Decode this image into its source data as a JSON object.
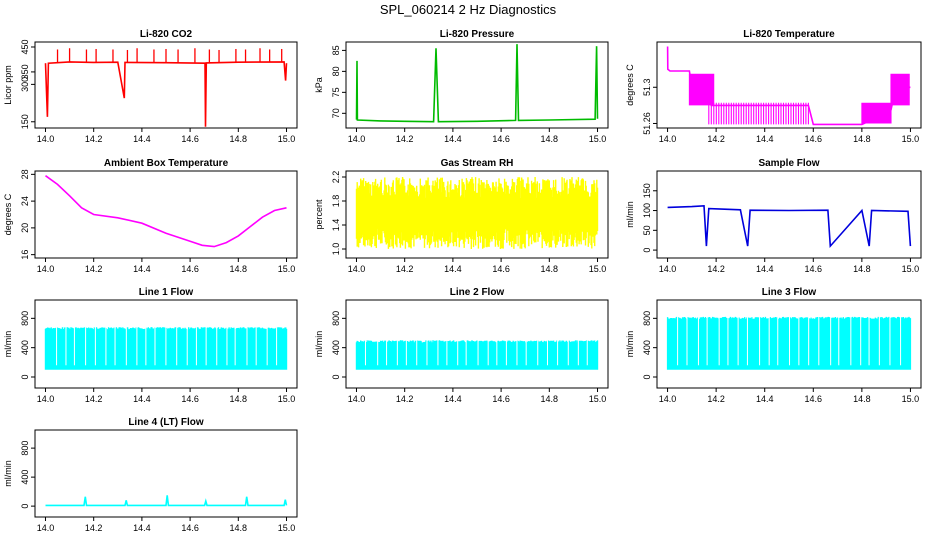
{
  "figure_title": "SPL_060214  2 Hz Diagnostics",
  "chart_data": [
    {
      "type": "line",
      "title": "Li-820 CO2",
      "ylabel": "Licor ppm",
      "color": "#ff0000",
      "xlim": [
        14.0,
        15.0
      ],
      "ylim": [
        125,
        470
      ],
      "yticks": [
        150,
        300,
        350,
        450
      ],
      "xticks": [
        "14.0",
        "14.2",
        "14.4",
        "14.6",
        "14.8",
        "15.0"
      ],
      "series": [
        {
          "x": [
            14.0,
            14.008,
            14.012,
            14.1,
            14.2,
            14.3,
            14.327,
            14.33,
            14.5,
            14.662,
            14.664,
            14.667,
            14.8,
            14.99,
            14.996,
            15.0
          ],
          "y": [
            385,
            170,
            385,
            390,
            388,
            389,
            245,
            388,
            387,
            385,
            130,
            386,
            389,
            390,
            315,
            385
          ]
        }
      ],
      "spikes": [
        {
          "x": [
            14.05,
            14.1,
            14.17,
            14.21,
            14.28,
            14.34,
            14.38,
            14.45,
            14.5,
            14.55,
            14.62,
            14.68,
            14.72,
            14.79,
            14.83,
            14.89,
            14.93,
            14.98
          ],
          "y": [
            440,
            445,
            440,
            442,
            440,
            438,
            445,
            440,
            442,
            440,
            445,
            440,
            438,
            442,
            440,
            445,
            440,
            442
          ]
        }
      ]
    },
    {
      "type": "line",
      "title": "Li-820 Pressure",
      "ylabel": "kPa",
      "color": "#00bb00",
      "xlim": [
        14.0,
        15.0
      ],
      "ylim": [
        66.5,
        87
      ],
      "yticks": [
        70,
        75,
        80,
        85
      ],
      "xticks": [
        "14.0",
        "14.2",
        "14.4",
        "14.6",
        "14.8",
        "15.0"
      ],
      "series": [
        {
          "x": [
            14.0,
            14.002,
            14.004,
            14.1,
            14.2,
            14.32,
            14.33,
            14.34,
            14.5,
            14.66,
            14.666,
            14.672,
            14.8,
            14.99,
            14.996,
            15.0
          ],
          "y": [
            68.5,
            82.5,
            68.4,
            68.2,
            68.1,
            68.0,
            85.5,
            68.0,
            68.1,
            68.3,
            86.5,
            68.3,
            68.4,
            68.6,
            86.0,
            68.7
          ]
        }
      ]
    },
    {
      "type": "line",
      "title": "Li-820 Temperature",
      "ylabel": "degrees C",
      "color": "#ff00ff",
      "xlim": [
        14.0,
        15.0
      ],
      "ylim": [
        51.255,
        51.35
      ],
      "yticks": [
        51.26,
        51.3
      ],
      "xticks": [
        "14.0",
        "14.2",
        "14.4",
        "14.6",
        "14.8",
        "15.0"
      ],
      "series": [
        {
          "x": [
            14.0,
            14.001,
            14.01,
            14.09,
            14.1,
            14.17,
            14.18,
            14.58,
            14.6,
            14.8,
            14.85,
            14.92,
            14.94,
            15.0
          ],
          "y": [
            51.345,
            51.32,
            51.318,
            51.318,
            51.3,
            51.3,
            51.28,
            51.28,
            51.259,
            51.259,
            51.265,
            51.275,
            51.3,
            51.3
          ]
        }
      ],
      "bands": [
        [
          14.09,
          14.19,
          51.28,
          51.315
        ],
        [
          14.17,
          14.58,
          51.259,
          51.283
        ],
        [
          14.8,
          14.92,
          51.26,
          51.283
        ],
        [
          14.92,
          14.995,
          51.28,
          51.315
        ]
      ]
    },
    {
      "type": "line",
      "title": "Ambient Box Temperature",
      "ylabel": "degrees C",
      "color": "#ff00ff",
      "xlim": [
        14.0,
        15.0
      ],
      "ylim": [
        15.5,
        28.5
      ],
      "yticks": [
        16,
        20,
        24,
        28
      ],
      "xticks": [
        "14.0",
        "14.2",
        "14.4",
        "14.6",
        "14.8",
        "15.0"
      ],
      "series": [
        {
          "x": [
            14.0,
            14.05,
            14.1,
            14.15,
            14.2,
            14.3,
            14.4,
            14.5,
            14.6,
            14.65,
            14.7,
            14.75,
            14.8,
            14.85,
            14.9,
            14.95,
            15.0
          ],
          "y": [
            27.8,
            26.5,
            24.8,
            23.0,
            22.0,
            21.5,
            20.7,
            19.2,
            18.0,
            17.4,
            17.2,
            17.8,
            18.8,
            20.2,
            21.6,
            22.6,
            23.0
          ]
        }
      ]
    },
    {
      "type": "area",
      "title": "Gas Stream RH",
      "ylabel": "percent",
      "color": "#ffff00",
      "xlim": [
        14.0,
        15.0
      ],
      "ylim": [
        0.85,
        2.3
      ],
      "yticks": [
        1.0,
        1.4,
        1.8,
        2.2
      ],
      "xticks": [
        "14.0",
        "14.2",
        "14.4",
        "14.6",
        "14.8",
        "15.0"
      ],
      "series": [
        {
          "name": "range",
          "low": 1.0,
          "high": 2.2
        }
      ]
    },
    {
      "type": "line",
      "title": "Sample Flow",
      "ylabel": "ml/min",
      "color": "#0000dd",
      "xlim": [
        14.0,
        15.0
      ],
      "ylim": [
        -20,
        200
      ],
      "yticks": [
        0,
        50,
        100,
        150
      ],
      "xticks": [
        "14.0",
        "14.2",
        "14.4",
        "14.6",
        "14.8",
        "15.0"
      ],
      "series": [
        {
          "x": [
            14.0,
            14.1,
            14.15,
            14.16,
            14.17,
            14.3,
            14.33,
            14.34,
            14.5,
            14.66,
            14.67,
            14.8,
            14.83,
            14.84,
            14.99,
            15.0
          ],
          "y": [
            108,
            110,
            112,
            10,
            105,
            102,
            10,
            101,
            100,
            101,
            10,
            100,
            10,
            100,
            98,
            10
          ]
        }
      ]
    },
    {
      "type": "area",
      "title": "Line 1 Flow",
      "ylabel": "ml/min",
      "color": "#00ffff",
      "xlim": [
        14.0,
        15.0
      ],
      "ylim": [
        -150,
        1050
      ],
      "yticks": [
        0,
        400,
        800
      ],
      "xticks": [
        "14.0",
        "14.2",
        "14.4",
        "14.6",
        "14.8",
        "15.0"
      ],
      "series": [
        {
          "name": "range",
          "low": 100,
          "high": 680
        }
      ]
    },
    {
      "type": "area",
      "title": "Line 2 Flow",
      "ylabel": "ml/min",
      "color": "#00ffff",
      "xlim": [
        14.0,
        15.0
      ],
      "ylim": [
        -150,
        1050
      ],
      "yticks": [
        0,
        400,
        800
      ],
      "xticks": [
        "14.0",
        "14.2",
        "14.4",
        "14.6",
        "14.8",
        "15.0"
      ],
      "series": [
        {
          "name": "range",
          "low": 100,
          "high": 500
        }
      ]
    },
    {
      "type": "area",
      "title": "Line 3 Flow",
      "ylabel": "ml/min",
      "color": "#00ffff",
      "xlim": [
        14.0,
        15.0
      ],
      "ylim": [
        -150,
        1050
      ],
      "yticks": [
        0,
        400,
        800
      ],
      "xticks": [
        "14.0",
        "14.2",
        "14.4",
        "14.6",
        "14.8",
        "15.0"
      ],
      "series": [
        {
          "name": "range",
          "low": 100,
          "high": 820
        }
      ]
    },
    {
      "type": "line",
      "title": "Line 4 (LT) Flow",
      "ylabel": "ml/min",
      "color": "#00ffff",
      "xlim": [
        14.0,
        15.0
      ],
      "ylim": [
        -150,
        1050
      ],
      "yticks": [
        0,
        400,
        800
      ],
      "xticks": [
        "14.0",
        "14.2",
        "14.4",
        "14.6",
        "14.8",
        "15.0"
      ],
      "series": [
        {
          "x": [
            14.0,
            14.16,
            14.165,
            14.17,
            14.33,
            14.335,
            14.34,
            14.5,
            14.505,
            14.51,
            14.66,
            14.665,
            14.67,
            14.83,
            14.835,
            14.84,
            14.99,
            14.995,
            15.0
          ],
          "y": [
            10,
            10,
            130,
            10,
            10,
            80,
            10,
            10,
            150,
            10,
            10,
            70,
            10,
            10,
            130,
            10,
            10,
            90,
            10
          ]
        }
      ]
    }
  ]
}
